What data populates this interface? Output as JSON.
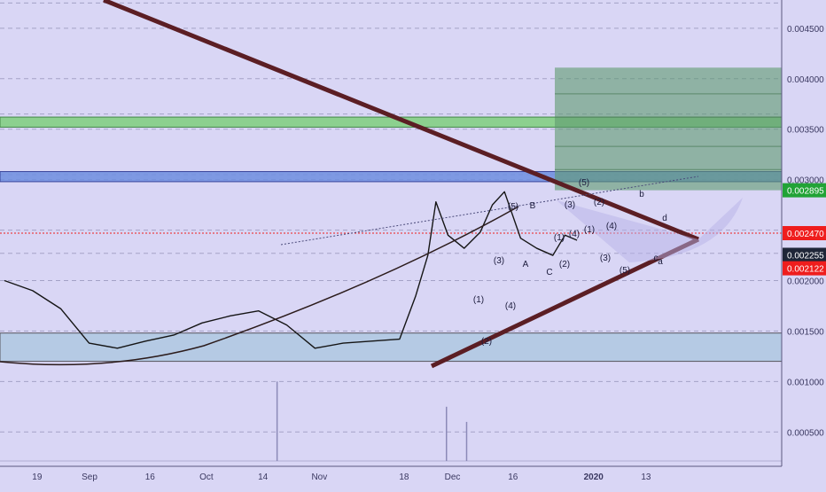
{
  "chart_data": {
    "type": "line",
    "title": "",
    "xlabel": "",
    "ylabel": "",
    "ylim": [
      0.00016,
      0.00478
    ],
    "grid": true,
    "y_tick_labels": [
      "0.000500",
      "0.001000",
      "0.001500",
      "0.002000",
      "0.002500",
      "0.003000",
      "0.003500",
      "0.004000",
      "0.004500"
    ],
    "x_tick_labels": [
      "19",
      "Sep",
      "16",
      "Oct",
      "14",
      "Nov",
      "18",
      "Dec",
      "16",
      "2020",
      "13"
    ],
    "price_labels": [
      {
        "text": "0.002895",
        "value": 0.002895,
        "color": "#21a336"
      },
      {
        "text": "0.002470",
        "value": 0.00247,
        "color": "#ef1d1d"
      },
      {
        "text": "0.002255",
        "value": 0.002255,
        "color": "#1f2638"
      },
      {
        "text": "0.002122",
        "value": 0.002122,
        "color": "#ef1d1d"
      }
    ],
    "series": [
      {
        "name": "",
        "color": "#151515",
        "x": [
          "Aug 12",
          "Aug 19",
          "Aug 26",
          "Sep 2",
          "Sep 9",
          "Sep 16",
          "Sep 23",
          "Sep 30",
          "Oct 7",
          "Oct 14",
          "Oct 21",
          "Oct 28",
          "Nov 4",
          "Nov 11",
          "Nov 18",
          "Nov 22",
          "Nov 25",
          "Nov 27",
          "Nov 30",
          "Dec 4",
          "Dec 8",
          "Dec 11",
          "Dec 14",
          "Dec 18",
          "Dec 22",
          "Dec 26",
          "Dec 29",
          "Jan 1"
        ],
        "y": [
          0.002,
          0.0019,
          0.00172,
          0.00138,
          0.00133,
          0.0014,
          0.00146,
          0.00158,
          0.00165,
          0.0017,
          0.00156,
          0.00133,
          0.00138,
          0.0014,
          0.00142,
          0.00185,
          0.00225,
          0.00278,
          0.00245,
          0.00232,
          0.00248,
          0.00275,
          0.00288,
          0.00242,
          0.00232,
          0.00225,
          0.00245,
          0.0024
        ]
      }
    ],
    "volume_spikes": [
      {
        "x": "Oct 14",
        "value": 0.001
      },
      {
        "x": "Nov 25",
        "value": 0.00075
      },
      {
        "x": "Nov 30",
        "value": 0.0006
      }
    ]
  },
  "wave_labels": [
    "(1)",
    "(2)",
    "(3)",
    "(4)",
    "(5)",
    "A",
    "B",
    "C",
    "(1)",
    "(2)",
    "(3)",
    "(4)",
    "(5)",
    "(1)",
    "(2)",
    "(3)",
    "(4)",
    "(5)",
    "a",
    "b",
    "c",
    "d"
  ]
}
